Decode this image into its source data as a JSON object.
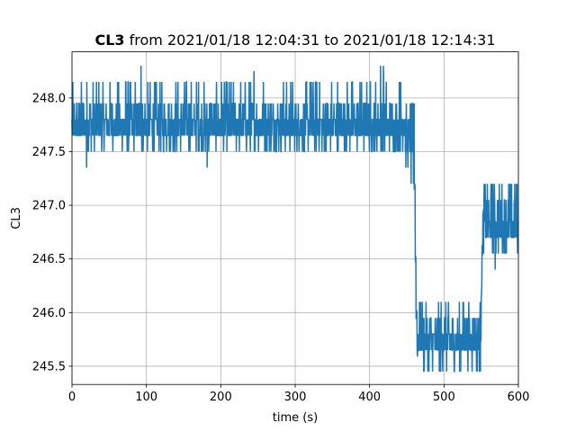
{
  "chart_data": {
    "type": "line",
    "title_bold": "CL3",
    "title_rest": " from 2021/01/18 12:04:31 to 2021/01/18 12:14:31",
    "xlabel": "time (s)",
    "ylabel": "CL3",
    "xlim": [
      0,
      600
    ],
    "ylim": [
      245.33,
      248.43
    ],
    "xticks": [
      0,
      100,
      200,
      300,
      400,
      500,
      600
    ],
    "yticks": [
      245.5,
      246.0,
      246.5,
      247.0,
      247.5,
      248.0
    ],
    "ytick_labels": [
      "245.5",
      "246.0",
      "246.5",
      "247.0",
      "247.5",
      "248.0"
    ],
    "grid": true,
    "line_color": "#1f77b4",
    "series": [
      {
        "segments": [
          {
            "x": [
              0,
              448
            ],
            "levels": [
              247.5,
              247.65,
              247.8,
              247.95,
              248.15
            ],
            "spikes": [
              [
                20,
                247.35
              ],
              [
                93,
                248.3
              ],
              [
                182,
                247.35
              ],
              [
                245,
                248.25
              ],
              [
                415,
                248.3
              ],
              [
                419,
                248.3
              ]
            ]
          },
          {
            "x": [
              448,
              460
            ],
            "levels": [
              247.35,
              247.5,
              247.65,
              247.8,
              247.95
            ],
            "spikes": [
              [
                456,
                247.2
              ],
              [
                459,
                247.2
              ]
            ]
          },
          {
            "x": [
              460,
              465
            ],
            "levels": [
              247.2,
              246.5,
              246.0,
              245.65
            ]
          },
          {
            "x": [
              465,
              549
            ],
            "levels": [
              245.45,
              245.65,
              245.8,
              245.95,
              246.1
            ],
            "spikes": []
          },
          {
            "x": [
              549,
              553
            ],
            "levels": [
              245.8,
              246.2,
              246.6,
              246.9
            ]
          },
          {
            "x": [
              553,
              600
            ],
            "levels": [
              246.55,
              246.7,
              246.85,
              247.05,
              247.2
            ],
            "spikes": [
              [
                569,
                246.4
              ]
            ]
          }
        ]
      }
    ]
  }
}
